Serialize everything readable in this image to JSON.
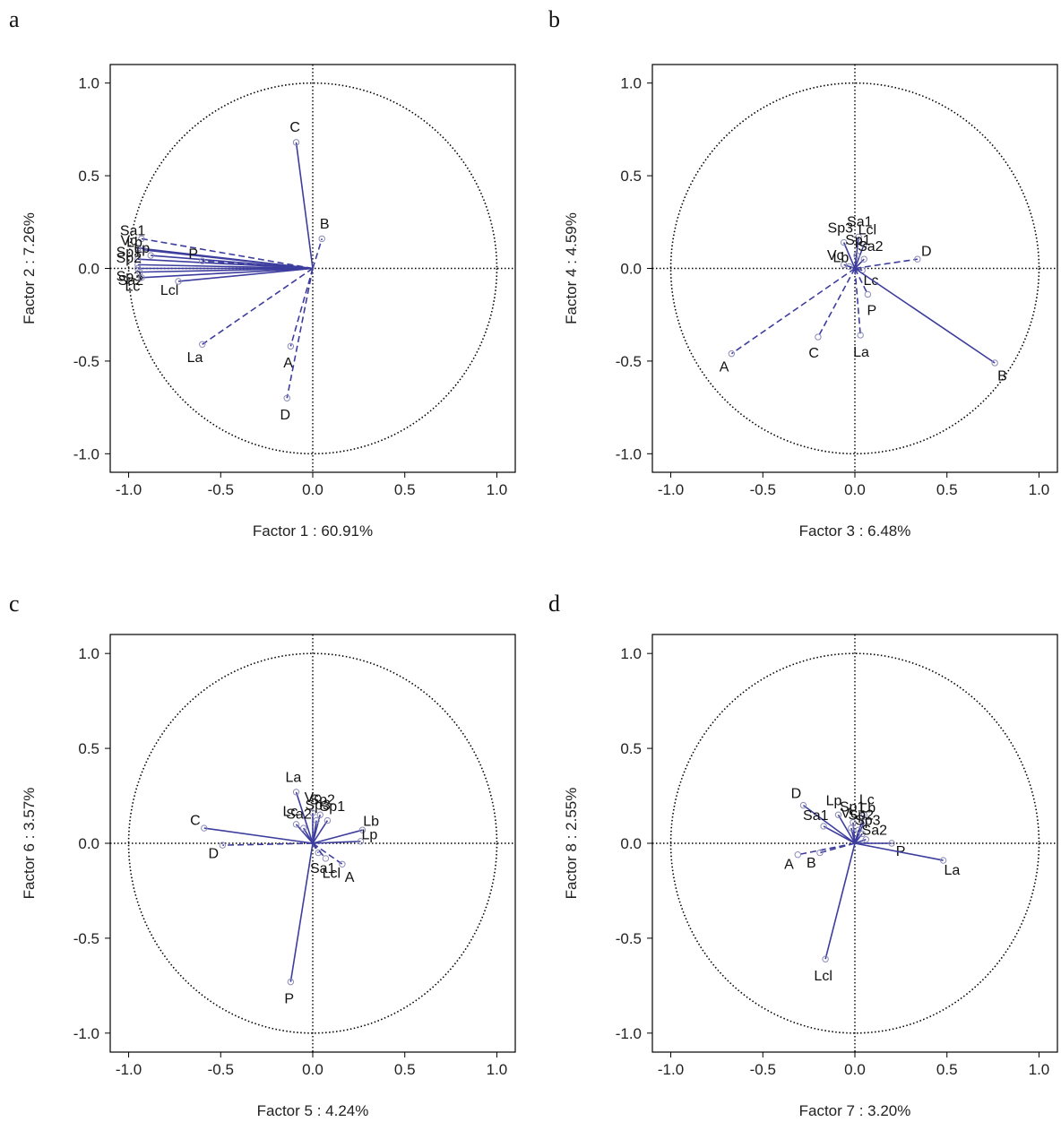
{
  "figure": {
    "panels": [
      "a",
      "b",
      "c",
      "d"
    ]
  },
  "chart_data": [
    {
      "panel": "a",
      "type": "scatter",
      "subtype": "pca-correlation-circle",
      "xlabel": "Factor 1 : 60.91%",
      "ylabel": "Factor 2 :  7.26%",
      "xlim": [
        -1.1,
        1.1
      ],
      "ylim": [
        -1.1,
        1.1
      ],
      "xticks": [
        "-1.0",
        "-0.5",
        "0.0",
        "0.5",
        "1.0"
      ],
      "yticks": [
        "1.0",
        "0.5",
        "0.0",
        "-0.5",
        "-1.0"
      ],
      "unit_circle": true,
      "vectors": [
        {
          "label": "C",
          "x": -0.09,
          "y": 0.68,
          "style": "solid"
        },
        {
          "label": "B",
          "x": 0.05,
          "y": 0.16,
          "style": "dashed"
        },
        {
          "label": "Sa1",
          "x": -0.93,
          "y": 0.16,
          "style": "dashed"
        },
        {
          "label": "Vc",
          "x": -0.95,
          "y": 0.11,
          "style": "solid"
        },
        {
          "label": "Lb",
          "x": -0.92,
          "y": 0.1,
          "style": "solid"
        },
        {
          "label": "Lp",
          "x": -0.88,
          "y": 0.07,
          "style": "solid"
        },
        {
          "label": "Sp1",
          "x": -0.95,
          "y": 0.05,
          "style": "solid"
        },
        {
          "label": "Sp2",
          "x": -0.95,
          "y": 0.02,
          "style": "solid"
        },
        {
          "label": "Sp3",
          "x": -0.95,
          "y": 0.0,
          "style": "solid"
        },
        {
          "label": "Sa2",
          "x": -0.94,
          "y": -0.02,
          "style": "solid"
        },
        {
          "label": "Lc",
          "x": -0.93,
          "y": -0.05,
          "style": "solid"
        },
        {
          "label": "P",
          "x": -0.6,
          "y": 0.04,
          "style": "dashed"
        },
        {
          "label": "Lcl",
          "x": -0.73,
          "y": -0.07,
          "style": "solid"
        },
        {
          "label": "La",
          "x": -0.6,
          "y": -0.41,
          "style": "dashed"
        },
        {
          "label": "A",
          "x": -0.12,
          "y": -0.42,
          "style": "dashed"
        },
        {
          "label": "D",
          "x": -0.14,
          "y": -0.7,
          "style": "dashed"
        }
      ]
    },
    {
      "panel": "b",
      "type": "scatter",
      "subtype": "pca-correlation-circle",
      "xlabel": "Factor 3 :  6.48%",
      "ylabel": "Factor 4 :  4.59%",
      "xlim": [
        -1.1,
        1.1
      ],
      "ylim": [
        -1.1,
        1.1
      ],
      "xticks": [
        "-1.0",
        "-0.5",
        "0.0",
        "0.5",
        "1.0"
      ],
      "yticks": [
        "1.0",
        "0.5",
        "0.0",
        "-0.5",
        "-1.0"
      ],
      "unit_circle": true,
      "vectors": [
        {
          "label": "Sa1",
          "x": 0.02,
          "y": 0.17,
          "style": "solid"
        },
        {
          "label": "Sp3",
          "x": -0.06,
          "y": 0.14,
          "style": "solid"
        },
        {
          "label": "Lcl",
          "x": 0.05,
          "y": 0.13,
          "style": "solid"
        },
        {
          "label": "Sp1",
          "x": 0.01,
          "y": 0.07,
          "style": "solid"
        },
        {
          "label": "Sa2",
          "x": 0.05,
          "y": 0.05,
          "style": "solid"
        },
        {
          "label": "Vc",
          "x": -0.06,
          "y": 0.02,
          "style": "solid"
        },
        {
          "label": "Lb",
          "x": -0.03,
          "y": 0.01,
          "style": "solid"
        },
        {
          "label": "Lc",
          "x": 0.04,
          "y": -0.01,
          "style": "solid"
        },
        {
          "label": "D",
          "x": 0.34,
          "y": 0.05,
          "style": "dashed"
        },
        {
          "label": "P",
          "x": 0.07,
          "y": -0.14,
          "style": "dashed"
        },
        {
          "label": "La",
          "x": 0.03,
          "y": -0.36,
          "style": "dashed"
        },
        {
          "label": "C",
          "x": -0.2,
          "y": -0.37,
          "style": "dashed"
        },
        {
          "label": "A",
          "x": -0.67,
          "y": -0.46,
          "style": "dashed"
        },
        {
          "label": "B",
          "x": 0.76,
          "y": -0.51,
          "style": "solid"
        }
      ]
    },
    {
      "panel": "c",
      "type": "scatter",
      "subtype": "pca-correlation-circle",
      "xlabel": "Factor 5 :  4.24%",
      "ylabel": "Factor 6 :  3.57%",
      "xlim": [
        -1.1,
        1.1
      ],
      "ylim": [
        -1.1,
        1.1
      ],
      "xticks": [
        "-1.0",
        "-0.5",
        "0.0",
        "0.5",
        "1.0"
      ],
      "yticks": [
        "1.0",
        "0.5",
        "0.0",
        "-0.5",
        "-1.0"
      ],
      "unit_circle": true,
      "vectors": [
        {
          "label": "La",
          "x": -0.09,
          "y": 0.27,
          "style": "solid"
        },
        {
          "label": "C",
          "x": -0.59,
          "y": 0.08,
          "style": "solid"
        },
        {
          "label": "D",
          "x": -0.49,
          "y": -0.01,
          "style": "dashed"
        },
        {
          "label": "Vc",
          "x": 0.0,
          "y": 0.16,
          "style": "solid"
        },
        {
          "label": "Sp2",
          "x": 0.04,
          "y": 0.15,
          "style": "solid"
        },
        {
          "label": "Sp3",
          "x": 0.02,
          "y": 0.12,
          "style": "solid"
        },
        {
          "label": "Sp1",
          "x": 0.08,
          "y": 0.12,
          "style": "solid"
        },
        {
          "label": "Lc",
          "x": -0.09,
          "y": 0.1,
          "style": "solid"
        },
        {
          "label": "Sa2",
          "x": -0.05,
          "y": 0.08,
          "style": "solid"
        },
        {
          "label": "Lb",
          "x": 0.27,
          "y": 0.07,
          "style": "solid"
        },
        {
          "label": "Lp",
          "x": 0.26,
          "y": 0.01,
          "style": "solid"
        },
        {
          "label": "Sa1",
          "x": 0.03,
          "y": -0.05,
          "style": "dashed"
        },
        {
          "label": "Lcl",
          "x": 0.07,
          "y": -0.08,
          "style": "dashed"
        },
        {
          "label": "A",
          "x": 0.16,
          "y": -0.11,
          "style": "dashed"
        },
        {
          "label": "P",
          "x": -0.12,
          "y": -0.73,
          "style": "solid"
        }
      ]
    },
    {
      "panel": "d",
      "type": "scatter",
      "subtype": "pca-correlation-circle",
      "xlabel": "Factor 7 :  3.20%",
      "ylabel": "Factor 8 :  2.55%",
      "xlim": [
        -1.1,
        1.1
      ],
      "ylim": [
        -1.1,
        1.1
      ],
      "xticks": [
        "-1.0",
        "-0.5",
        "0.0",
        "0.5",
        "1.0"
      ],
      "yticks": [
        "1.0",
        "0.5",
        "0.0",
        "-0.5",
        "-1.0"
      ],
      "unit_circle": true,
      "vectors": [
        {
          "label": "D",
          "x": -0.28,
          "y": 0.2,
          "style": "solid"
        },
        {
          "label": "Lp",
          "x": -0.09,
          "y": 0.15,
          "style": "solid"
        },
        {
          "label": "Lc",
          "x": 0.05,
          "y": 0.15,
          "style": "solid"
        },
        {
          "label": "Sa1",
          "x": -0.17,
          "y": 0.09,
          "style": "solid"
        },
        {
          "label": "Sp1",
          "x": -0.01,
          "y": 0.11,
          "style": "solid"
        },
        {
          "label": "Lb",
          "x": 0.05,
          "y": 0.11,
          "style": "solid"
        },
        {
          "label": "Vc",
          "x": -0.02,
          "y": 0.08,
          "style": "solid"
        },
        {
          "label": "Sp2",
          "x": 0.02,
          "y": 0.07,
          "style": "solid"
        },
        {
          "label": "Sp3",
          "x": 0.04,
          "y": 0.05,
          "style": "solid"
        },
        {
          "label": "Sa2",
          "x": 0.06,
          "y": 0.02,
          "style": "solid"
        },
        {
          "label": "P",
          "x": 0.2,
          "y": 0.0,
          "style": "solid"
        },
        {
          "label": "La",
          "x": 0.48,
          "y": -0.09,
          "style": "solid"
        },
        {
          "label": "A",
          "x": -0.31,
          "y": -0.06,
          "style": "dashed"
        },
        {
          "label": "B",
          "x": -0.19,
          "y": -0.05,
          "style": "dashed"
        },
        {
          "label": "Lcl",
          "x": -0.16,
          "y": -0.61,
          "style": "solid"
        }
      ]
    }
  ],
  "colors": {
    "vector": "#3d3d9e",
    "marker": "#8a8ab8",
    "axis": "#000000"
  }
}
